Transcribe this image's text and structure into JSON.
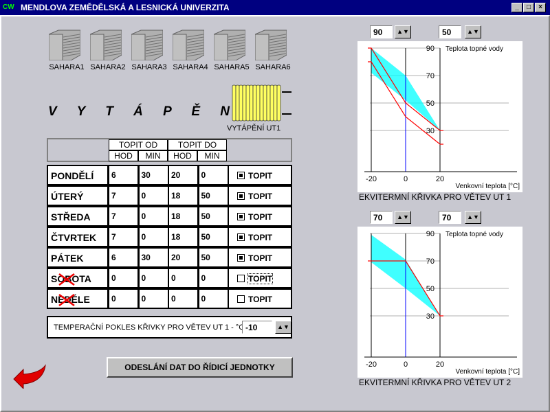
{
  "window": {
    "logo": "CW",
    "title": "MENDLOVA ZEMĚDĚLSKÁ A LESNICKÁ UNIVERZITA",
    "min": "_",
    "max": "□",
    "close": "×"
  },
  "units": [
    "SAHARA1",
    "SAHARA2",
    "SAHARA3",
    "SAHARA4",
    "SAHARA5",
    "SAHARA6"
  ],
  "heading": "V Y T Á P Ě N Í",
  "radiator_label": "VYTÁPĚNÍ UT1",
  "table": {
    "topit_od": "TOPIT OD",
    "topit_do": "TOPIT DO",
    "hod": "HOD",
    "min": "MIN",
    "rows": [
      {
        "day": "PONDĚLÍ",
        "od_hod": "6",
        "od_min": "30",
        "do_hod": "20",
        "do_min": "0",
        "topit": true,
        "label": "TOPIT",
        "disabled": false
      },
      {
        "day": "ÚTERÝ",
        "od_hod": "7",
        "od_min": "0",
        "do_hod": "18",
        "do_min": "50",
        "topit": true,
        "label": "TOPIT",
        "disabled": false
      },
      {
        "day": "STŘEDA",
        "od_hod": "7",
        "od_min": "0",
        "do_hod": "18",
        "do_min": "50",
        "topit": true,
        "label": "TOPIT",
        "disabled": false
      },
      {
        "day": "ČTVRTEK",
        "od_hod": "7",
        "od_min": "0",
        "do_hod": "18",
        "do_min": "50",
        "topit": true,
        "label": "TOPIT",
        "disabled": false
      },
      {
        "day": "PÁTEK",
        "od_hod": "6",
        "od_min": "30",
        "do_hod": "20",
        "do_min": "50",
        "topit": true,
        "label": "TOPIT",
        "disabled": false
      },
      {
        "day": "SOBOTA",
        "od_hod": "0",
        "od_min": "0",
        "do_hod": "0",
        "do_min": "0",
        "topit": false,
        "label": "TOPIT",
        "disabled": true
      },
      {
        "day": "NEDĚLE",
        "od_hod": "0",
        "od_min": "0",
        "do_hod": "0",
        "do_min": "0",
        "topit": false,
        "label": "TOPIT",
        "disabled": true
      }
    ]
  },
  "pokles": {
    "label": "TEMPERAČNÍ POKLES KŘIVKY PRO VĚTEV UT 1 - °C",
    "value": "-10"
  },
  "send_button": "ODESLÁNÍ DAT DO ŘÍDICÍ JEDNOTKY",
  "colors": {
    "curve": "#ff0000",
    "band": "#00ffff",
    "zero_axis": "#0000ff"
  },
  "chart_data": [
    {
      "type": "line",
      "title": "EKVITERMNÍ KŘIVKA PRO VĚTEV UT 1",
      "spin_max": "90",
      "spin_min": "50",
      "ylabel": "Teplota topné vody",
      "xlabel": "Venkovní teplota [°C]",
      "x_ticks": [
        "-20",
        "0",
        "20"
      ],
      "y_ticks": [
        "90",
        "70",
        "50",
        "30"
      ],
      "xlim": [
        -20,
        20
      ],
      "ylim": [
        0,
        90
      ],
      "band": [
        [
          -20,
          90
        ],
        [
          0,
          70
        ],
        [
          20,
          30
        ],
        [
          0,
          52
        ],
        [
          -20,
          72
        ]
      ],
      "series": [
        {
          "x": [
            -22,
            -20,
            0,
            20,
            22
          ],
          "y": [
            90,
            90,
            50,
            30,
            30
          ]
        },
        {
          "x": [
            -22,
            -20,
            0,
            20,
            22
          ],
          "y": [
            80,
            80,
            40,
            20,
            20
          ]
        }
      ]
    },
    {
      "type": "line",
      "title": "EKVITERMNÍ KŘIVKA PRO VĚTEV UT 2",
      "spin_max": "70",
      "spin_min": "70",
      "ylabel": "Teplota topné vody",
      "xlabel": "Venkovní teplota [°C]",
      "x_ticks": [
        "-20",
        "0",
        "20"
      ],
      "y_ticks": [
        "90",
        "70",
        "50",
        "30"
      ],
      "xlim": [
        -20,
        20
      ],
      "ylim": [
        0,
        90
      ],
      "band": [
        [
          -20,
          89
        ],
        [
          0,
          71
        ],
        [
          20,
          30
        ],
        [
          0,
          50
        ],
        [
          -20,
          69
        ]
      ],
      "series": [
        {
          "x": [
            -22,
            0,
            20,
            22
          ],
          "y": [
            70,
            70,
            30,
            30
          ]
        }
      ]
    }
  ]
}
